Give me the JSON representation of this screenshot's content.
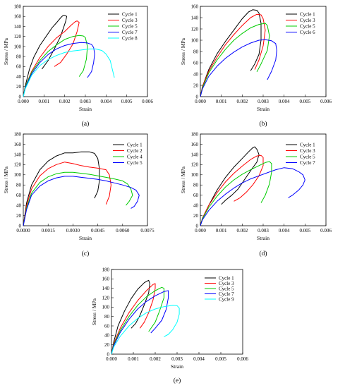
{
  "chart_data": [
    {
      "type": "line",
      "caption": "(a)",
      "xlabel": "Strain",
      "ylabel": "Stress / MPa",
      "xlim": [
        0,
        0.006
      ],
      "ylim": [
        0,
        180
      ],
      "xticks": [
        "0.000",
        "0.001",
        "0.002",
        "0.003",
        "0.004",
        "0.005",
        "0.006"
      ],
      "yticks": [
        "0",
        "20",
        "40",
        "60",
        "80",
        "100",
        "120",
        "140",
        "160",
        "180"
      ],
      "legend_position": "top-right",
      "series": [
        {
          "name": "Cycle 1",
          "color": "#000000",
          "x": [
            0,
            0.0001,
            0.0003,
            0.0005,
            0.0008,
            0.0011,
            0.0014,
            0.0016,
            0.0018,
            0.0019,
            0.00195,
            0.002,
            0.0021,
            0.00205,
            0.0018,
            0.0015,
            0.0012,
            0.0009
          ],
          "y": [
            0,
            22,
            55,
            78,
            102,
            120,
            138,
            147,
            157,
            161,
            162,
            162,
            160,
            150,
            120,
            95,
            72,
            55
          ]
        },
        {
          "name": "Cycle 3",
          "color": "#ff0000",
          "x": [
            0,
            0.0001,
            0.0004,
            0.0008,
            0.0012,
            0.0016,
            0.002,
            0.0023,
            0.0025,
            0.0026,
            0.0027,
            0.0026,
            0.0024,
            0.0021,
            0.0018,
            0.0015
          ],
          "y": [
            0,
            20,
            50,
            78,
            100,
            117,
            130,
            142,
            149,
            151,
            148,
            130,
            105,
            85,
            68,
            60
          ]
        },
        {
          "name": "Cycle 5",
          "color": "#00cc00",
          "x": [
            0,
            0.0001,
            0.0004,
            0.0008,
            0.0012,
            0.0016,
            0.002,
            0.0024,
            0.0027,
            0.0029,
            0.003,
            0.0031,
            0.00305,
            0.0029,
            0.0027
          ],
          "y": [
            0,
            20,
            48,
            72,
            90,
            103,
            114,
            120,
            122,
            121,
            118,
            100,
            75,
            52,
            40
          ]
        },
        {
          "name": "Cycle 7",
          "color": "#0000ff",
          "x": [
            0,
            0.0001,
            0.0004,
            0.0008,
            0.0012,
            0.0016,
            0.002,
            0.0024,
            0.0028,
            0.0031,
            0.0033,
            0.0034,
            0.00345,
            0.0034,
            0.0033,
            0.0031
          ],
          "y": [
            0,
            18,
            45,
            68,
            84,
            95,
            102,
            106,
            108,
            107,
            104,
            98,
            85,
            68,
            50,
            38
          ]
        },
        {
          "name": "Cycle 8",
          "color": "#00ffff",
          "x": [
            0,
            0.0001,
            0.0004,
            0.0008,
            0.0012,
            0.0016,
            0.002,
            0.0024,
            0.0028,
            0.0032,
            0.0035,
            0.0038,
            0.004,
            0.0042,
            0.0043,
            0.0044
          ],
          "y": [
            0,
            16,
            42,
            62,
            74,
            82,
            88,
            91,
            93,
            95,
            95,
            92,
            85,
            72,
            55,
            38
          ]
        }
      ]
    },
    {
      "type": "line",
      "caption": "(b)",
      "xlabel": "Strain",
      "ylabel": "Stress / MPa",
      "xlim": [
        0,
        0.006
      ],
      "ylim": [
        0,
        160
      ],
      "xticks": [
        "0.000",
        "0.001",
        "0.002",
        "0.003",
        "0.004",
        "0.005",
        "0.006"
      ],
      "yticks": [
        "0",
        "20",
        "40",
        "60",
        "80",
        "100",
        "120",
        "140",
        "160"
      ],
      "legend_position": "top-right",
      "series": [
        {
          "name": "Cycle 1",
          "color": "#000000",
          "x": [
            0,
            0.0001,
            0.0004,
            0.0008,
            0.0012,
            0.0016,
            0.002,
            0.0023,
            0.0025,
            0.0027,
            0.0028,
            0.0029,
            0.0029,
            0.0028,
            0.0026,
            0.0024
          ],
          "y": [
            0,
            18,
            48,
            76,
            98,
            118,
            138,
            150,
            154,
            153,
            148,
            130,
            100,
            75,
            58,
            46
          ]
        },
        {
          "name": "Cycle 3",
          "color": "#ff0000",
          "x": [
            0,
            0.0001,
            0.0004,
            0.0008,
            0.0012,
            0.0016,
            0.002,
            0.0024,
            0.0027,
            0.0029,
            0.003,
            0.0031,
            0.003,
            0.0028,
            0.0026
          ],
          "y": [
            0,
            18,
            45,
            70,
            92,
            110,
            126,
            140,
            146,
            145,
            138,
            118,
            90,
            65,
            48
          ]
        },
        {
          "name": "Cycle 5",
          "color": "#00cc00",
          "x": [
            0,
            0.0001,
            0.0004,
            0.0008,
            0.0012,
            0.0016,
            0.002,
            0.0024,
            0.0028,
            0.0031,
            0.0032,
            0.0033,
            0.0032,
            0.0029,
            0.0027
          ],
          "y": [
            0,
            16,
            42,
            65,
            84,
            100,
            112,
            122,
            128,
            130,
            126,
            108,
            82,
            58,
            44
          ]
        },
        {
          "name": "Cycle 6",
          "color": "#0000ff",
          "x": [
            0,
            0.0001,
            0.0004,
            0.0008,
            0.0012,
            0.0016,
            0.002,
            0.0024,
            0.0028,
            0.0031,
            0.0034,
            0.0036,
            0.00365,
            0.0036,
            0.0034,
            0.0032
          ],
          "y": [
            0,
            14,
            36,
            54,
            68,
            79,
            88,
            95,
            100,
            101,
            99,
            94,
            82,
            65,
            45,
            30
          ]
        }
      ]
    },
    {
      "type": "line",
      "caption": "(c)",
      "xlabel": "Strain",
      "ylabel": "Stress / MPa",
      "xlim": [
        0,
        0.0075
      ],
      "ylim": [
        0,
        180
      ],
      "xticks": [
        "0.0000",
        "0.0015",
        "0.0030",
        "0.0045",
        "0.0060",
        "0.0075"
      ],
      "yticks": [
        "0",
        "20",
        "40",
        "60",
        "80",
        "100",
        "120",
        "140",
        "160",
        "180"
      ],
      "legend_position": "top-right",
      "series": [
        {
          "name": "Cycle 1",
          "color": "#000000",
          "x": [
            0,
            0.0002,
            0.0005,
            0.001,
            0.0015,
            0.002,
            0.0025,
            0.003,
            0.0035,
            0.004,
            0.0043,
            0.0045,
            0.0046,
            0.0046,
            0.0045,
            0.0043
          ],
          "y": [
            0,
            45,
            80,
            110,
            127,
            137,
            143,
            143,
            145,
            145,
            142,
            132,
            112,
            88,
            68,
            54
          ]
        },
        {
          "name": "Cycle 2",
          "color": "#ff0000",
          "x": [
            0,
            0.0002,
            0.0005,
            0.001,
            0.0015,
            0.002,
            0.0025,
            0.003,
            0.0035,
            0.004,
            0.0045,
            0.005,
            0.0052,
            0.0053,
            0.0052,
            0.005
          ],
          "y": [
            0,
            40,
            72,
            98,
            112,
            120,
            125,
            122,
            118,
            115,
            113,
            110,
            100,
            80,
            58,
            42
          ]
        },
        {
          "name": "Cycle 4",
          "color": "#00cc00",
          "x": [
            0,
            0.0002,
            0.0005,
            0.001,
            0.0015,
            0.002,
            0.0025,
            0.003,
            0.0035,
            0.004,
            0.0045,
            0.005,
            0.0055,
            0.006,
            0.0063,
            0.0065,
            0.0066,
            0.0064,
            0.0062
          ],
          "y": [
            0,
            35,
            64,
            85,
            96,
            102,
            105,
            105,
            103,
            101,
            98,
            95,
            92,
            88,
            82,
            72,
            60,
            48,
            40
          ]
        },
        {
          "name": "Cycle 5",
          "color": "#0000ff",
          "x": [
            0,
            0.0002,
            0.0005,
            0.001,
            0.0015,
            0.002,
            0.0025,
            0.003,
            0.0035,
            0.004,
            0.0045,
            0.005,
            0.0055,
            0.006,
            0.0065,
            0.0068,
            0.007,
            0.0069,
            0.0067,
            0.0065
          ],
          "y": [
            0,
            32,
            60,
            78,
            88,
            94,
            97,
            97,
            95,
            93,
            91,
            88,
            84,
            80,
            75,
            70,
            60,
            48,
            38,
            34
          ]
        }
      ]
    },
    {
      "type": "line",
      "caption": "(d)",
      "xlabel": "Strain",
      "ylabel": "Stress / MPa",
      "xlim": [
        0,
        0.006
      ],
      "ylim": [
        0,
        180
      ],
      "xticks": [
        "0.000",
        "0.001",
        "0.002",
        "0.003",
        "0.004",
        "0.005",
        "0.006"
      ],
      "yticks": [
        "0",
        "20",
        "40",
        "60",
        "80",
        "100",
        "120",
        "140",
        "160",
        "180"
      ],
      "legend_position": "top-right",
      "series": [
        {
          "name": "Cycle 1",
          "color": "#000000",
          "x": [
            0,
            0.0001,
            0.0004,
            0.0008,
            0.0012,
            0.0016,
            0.002,
            0.0023,
            0.0025,
            0.0026,
            0.0027,
            0.0028,
            0.0027,
            0.0024,
            0.0021,
            0.0018,
            0.0015,
            0.0012,
            0.001
          ],
          "y": [
            0,
            15,
            40,
            70,
            95,
            115,
            132,
            145,
            153,
            155,
            150,
            140,
            125,
            108,
            90,
            72,
            60,
            50,
            42
          ]
        },
        {
          "name": "Cycle 3",
          "color": "#ff0000",
          "x": [
            0,
            0.0001,
            0.0004,
            0.0008,
            0.0012,
            0.0016,
            0.002,
            0.0024,
            0.0027,
            0.0029,
            0.003,
            0.003,
            0.0028,
            0.0025,
            0.0022,
            0.0019,
            0.0016
          ],
          "y": [
            0,
            15,
            40,
            65,
            86,
            103,
            117,
            130,
            137,
            138,
            134,
            118,
            98,
            80,
            66,
            55,
            48
          ]
        },
        {
          "name": "Cycle 5",
          "color": "#00cc00",
          "x": [
            0,
            0.0001,
            0.0004,
            0.0008,
            0.0012,
            0.0016,
            0.002,
            0.0024,
            0.0028,
            0.0031,
            0.0033,
            0.0034,
            0.0034,
            0.0033,
            0.0031,
            0.0029
          ],
          "y": [
            0,
            14,
            36,
            58,
            76,
            90,
            101,
            110,
            118,
            124,
            126,
            122,
            105,
            82,
            60,
            45
          ]
        },
        {
          "name": "Cycle 7",
          "color": "#0000ff",
          "x": [
            0,
            0.0001,
            0.0004,
            0.0008,
            0.0012,
            0.0016,
            0.002,
            0.0024,
            0.0028,
            0.0032,
            0.0036,
            0.004,
            0.0044,
            0.0047,
            0.0049,
            0.005,
            0.0049,
            0.0047,
            0.0044,
            0.0042
          ],
          "y": [
            0,
            12,
            30,
            48,
            62,
            74,
            84,
            92,
            98,
            104,
            110,
            114,
            112,
            106,
            100,
            90,
            80,
            70,
            60,
            55
          ]
        }
      ]
    },
    {
      "type": "line",
      "caption": "(e)",
      "xlabel": "Strain",
      "ylabel": "Stress / MPa",
      "xlim": [
        0,
        0.006
      ],
      "ylim": [
        0,
        180
      ],
      "xticks": [
        "0.000",
        "0.001",
        "0.002",
        "0.003",
        "0.004",
        "0.005",
        "0.006"
      ],
      "yticks": [
        "0",
        "20",
        "40",
        "60",
        "80",
        "100",
        "120",
        "140",
        "160",
        "180"
      ],
      "legend_position": "top-right",
      "series": [
        {
          "name": "Cycle 1",
          "color": "#000000",
          "x": [
            0,
            0.0001,
            0.0003,
            0.0006,
            0.0009,
            0.0012,
            0.0015,
            0.0017,
            0.00175,
            0.0017,
            0.0015,
            0.0013,
            0.0011,
            0.0009
          ],
          "y": [
            0,
            25,
            60,
            92,
            118,
            138,
            152,
            157,
            150,
            130,
            105,
            82,
            65,
            55
          ]
        },
        {
          "name": "Cycle 3",
          "color": "#ff0000",
          "x": [
            0,
            0.0001,
            0.0004,
            0.0008,
            0.0012,
            0.0016,
            0.0019,
            0.002,
            0.002,
            0.0019,
            0.0017,
            0.0015,
            0.0013
          ],
          "y": [
            0,
            22,
            55,
            88,
            114,
            135,
            148,
            150,
            140,
            115,
            88,
            68,
            55
          ]
        },
        {
          "name": "Cycle 5",
          "color": "#00cc00",
          "x": [
            0,
            0.0001,
            0.0004,
            0.0008,
            0.0012,
            0.0016,
            0.002,
            0.0023,
            0.0024,
            0.0024,
            0.0022,
            0.002,
            0.0017
          ],
          "y": [
            0,
            20,
            50,
            80,
            104,
            122,
            135,
            142,
            140,
            120,
            92,
            68,
            48
          ]
        },
        {
          "name": "Cycle 7",
          "color": "#0000ff",
          "x": [
            0,
            0.0001,
            0.0004,
            0.0008,
            0.0012,
            0.0016,
            0.002,
            0.0024,
            0.0026,
            0.0026,
            0.0025,
            0.0023,
            0.002,
            0.0018
          ],
          "y": [
            0,
            18,
            46,
            74,
            96,
            112,
            124,
            133,
            135,
            120,
            95,
            72,
            55,
            45
          ]
        },
        {
          "name": "Cycle 9",
          "color": "#00ffff",
          "x": [
            0,
            0.0001,
            0.0004,
            0.0008,
            0.0012,
            0.0016,
            0.002,
            0.0024,
            0.0028,
            0.003,
            0.0031,
            0.0031,
            0.003,
            0.0028,
            0.0026,
            0.0024
          ],
          "y": [
            0,
            15,
            38,
            60,
            76,
            88,
            96,
            101,
            104,
            103,
            98,
            85,
            68,
            52,
            42,
            37
          ]
        }
      ]
    }
  ]
}
